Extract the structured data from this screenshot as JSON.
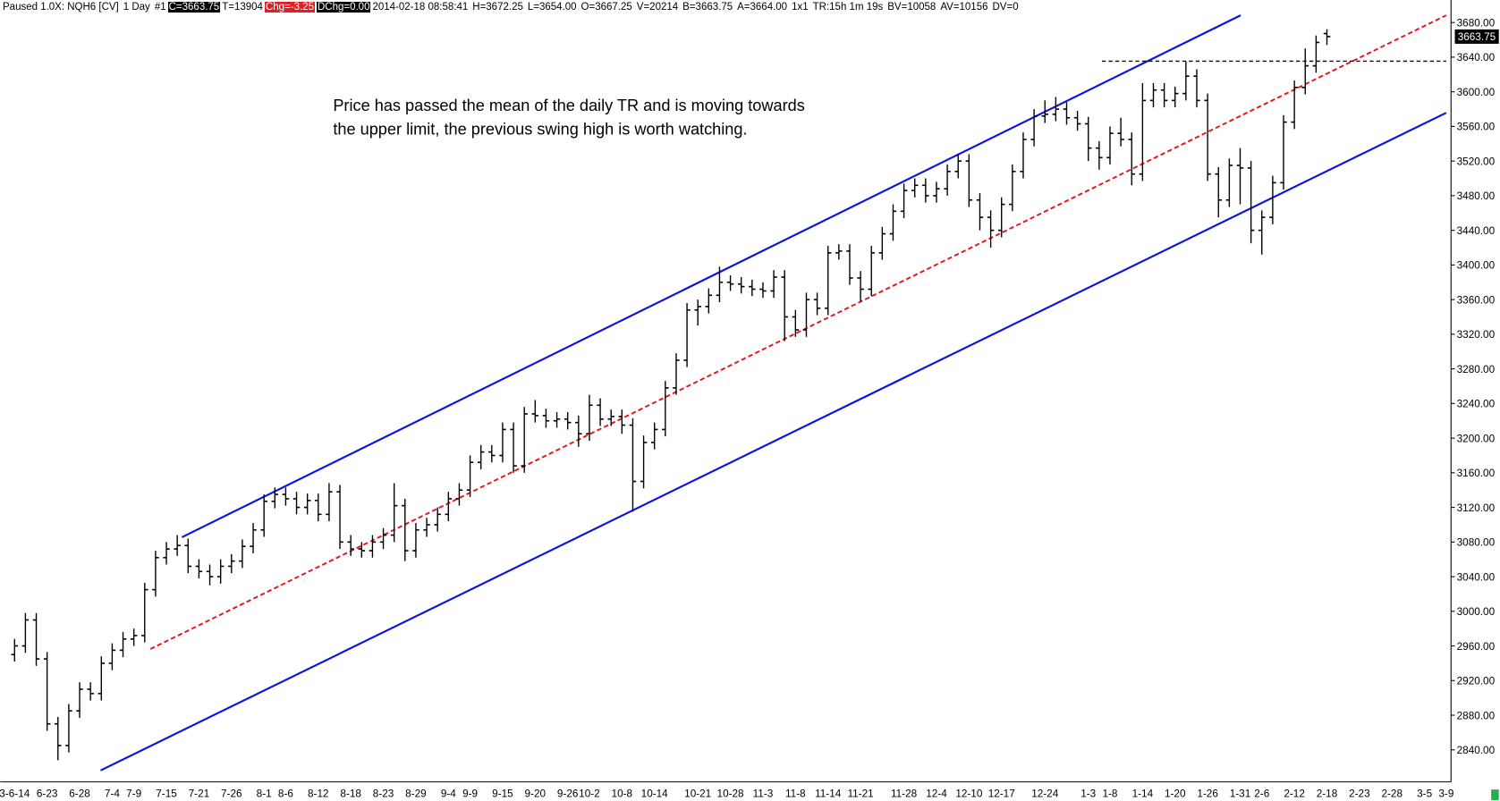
{
  "status_bar": [
    "Paused 1.0X: NQH6 [CV]",
    "1 Day",
    "#1",
    "C=3663.75",
    "T=13904",
    "Chg=-3.25",
    "DChg=0.00",
    "2014-02-18 08:58:41",
    "H=3672.25",
    "L=3654.00",
    "O=3667.25",
    "V=20214",
    "B=3663.75",
    "A=3664.00",
    "1x1",
    "TR:15h 1m 19s",
    "BV=10058",
    "AV=10156",
    "DV=0"
  ],
  "chart_data": {
    "type": "ohlc",
    "color": "#000000",
    "annotation": [
      "Price has passed the mean of the daily TR and is moving towards",
      "the upper limit, the previous swing high is worth watching."
    ],
    "categories": [
      "3-6-14",
      null,
      null,
      "6-23",
      null,
      null,
      "6-28",
      null,
      null,
      "7-4",
      null,
      "7-9",
      null,
      null,
      "7-15",
      null,
      null,
      "7-21",
      null,
      null,
      "7-26",
      null,
      null,
      "8-1",
      null,
      "8-6",
      null,
      null,
      "8-12",
      null,
      null,
      "8-18",
      null,
      null,
      "8-23",
      null,
      null,
      "8-29",
      null,
      null,
      "9-4",
      null,
      "9-9",
      null,
      null,
      "9-15",
      null,
      null,
      "9-20",
      null,
      null,
      "9-26",
      null,
      "10-2",
      null,
      null,
      "10-8",
      null,
      null,
      "10-14",
      null,
      null,
      null,
      "10-21",
      null,
      null,
      "10-28",
      null,
      null,
      "11-3",
      null,
      null,
      "11-8",
      null,
      null,
      "11-14",
      null,
      null,
      "11-21",
      null,
      null,
      null,
      "11-28",
      null,
      null,
      "12-4",
      null,
      null,
      "12-10",
      null,
      null,
      "12-17",
      null,
      null,
      null,
      "12-24",
      null,
      null,
      null,
      "1-3",
      null,
      "1-8",
      null,
      null,
      "1-14",
      null,
      null,
      "1-20",
      null,
      null,
      "1-26",
      null,
      null,
      "1-31",
      null,
      "2-6",
      null,
      null,
      "2-12",
      null,
      null,
      "2-18",
      null,
      null,
      "2-23",
      null,
      null,
      "2-28",
      null,
      null,
      "3-5",
      null,
      "3-9"
    ],
    "open": [
      2950,
      2960,
      2990,
      2945,
      2870,
      2845,
      2885,
      2910,
      2905,
      2940,
      2955,
      2968,
      2972,
      3025,
      3062,
      3072,
      3076,
      3052,
      3046,
      3040,
      3052,
      3058,
      3075,
      3094,
      3127,
      3135,
      3130,
      3120,
      3128,
      3112,
      3138,
      3080,
      3072,
      3070,
      3080,
      3088,
      3122,
      3070,
      3094,
      3100,
      3112,
      3130,
      3140,
      3172,
      3184,
      3180,
      3210,
      3168,
      3228,
      3226,
      3220,
      3222,
      3218,
      3205,
      3238,
      3222,
      3225,
      3215,
      3150,
      3195,
      3210,
      3258,
      3290,
      3348,
      3352,
      3365,
      3380,
      3378,
      3375,
      3372,
      3370,
      3386,
      3340,
      3325,
      3360,
      3350,
      3414,
      3416,
      3385,
      3372,
      3414,
      3436,
      3462,
      3486,
      3492,
      3480,
      3488,
      3508,
      3520,
      3475,
      3455,
      3440,
      3470,
      3508,
      3545,
      3572,
      3574,
      3580,
      3570,
      3563,
      3535,
      3524,
      3552,
      3545,
      3505,
      3590,
      3602,
      3590,
      3598,
      3618,
      3590,
      3505,
      3475,
      3515,
      3512,
      3440,
      3455,
      3495,
      3565,
      3605,
      3630,
      3667.25,
      null,
      null,
      null,
      null,
      null,
      null,
      null,
      null,
      null,
      null,
      null
    ],
    "high": [
      2968,
      2998,
      2998,
      2953,
      2878,
      2893,
      2918,
      2918,
      2948,
      2963,
      2976,
      2980,
      3033,
      3070,
      3080,
      3088,
      3084,
      3060,
      3054,
      3060,
      3066,
      3083,
      3102,
      3135,
      3143,
      3143,
      3138,
      3136,
      3136,
      3148,
      3146,
      3088,
      3080,
      3088,
      3096,
      3148,
      3130,
      3102,
      3108,
      3120,
      3138,
      3148,
      3180,
      3192,
      3192,
      3218,
      3218,
      3236,
      3244,
      3234,
      3230,
      3230,
      3226,
      3250,
      3246,
      3233,
      3233,
      3223,
      3203,
      3218,
      3266,
      3298,
      3356,
      3360,
      3373,
      3398,
      3388,
      3386,
      3383,
      3380,
      3394,
      3394,
      3348,
      3368,
      3368,
      3422,
      3424,
      3424,
      3393,
      3422,
      3444,
      3470,
      3494,
      3500,
      3500,
      3496,
      3516,
      3528,
      3528,
      3483,
      3463,
      3478,
      3516,
      3553,
      3580,
      3590,
      3594,
      3588,
      3578,
      3571,
      3543,
      3560,
      3570,
      3553,
      3610,
      3610,
      3610,
      3606,
      3635,
      3626,
      3598,
      3513,
      3523,
      3535,
      3520,
      3463,
      3503,
      3573,
      3613,
      3650,
      3665,
      3672.25,
      null,
      null,
      null,
      null,
      null,
      null,
      null,
      null,
      null,
      null,
      null
    ],
    "low": [
      2942,
      2952,
      2937,
      2862,
      2828,
      2837,
      2877,
      2897,
      2897,
      2932,
      2947,
      2960,
      2964,
      3017,
      3054,
      3064,
      3044,
      3038,
      3030,
      3032,
      3044,
      3050,
      3067,
      3086,
      3119,
      3122,
      3112,
      3112,
      3104,
      3104,
      3072,
      3064,
      3062,
      3062,
      3072,
      3080,
      3058,
      3062,
      3086,
      3092,
      3104,
      3122,
      3132,
      3164,
      3172,
      3172,
      3160,
      3160,
      3218,
      3212,
      3212,
      3210,
      3190,
      3197,
      3214,
      3214,
      3205,
      3115,
      3142,
      3187,
      3202,
      3250,
      3282,
      3330,
      3344,
      3357,
      3370,
      3367,
      3364,
      3362,
      3362,
      3312,
      3317,
      3317,
      3342,
      3342,
      3406,
      3377,
      3358,
      3364,
      3406,
      3428,
      3454,
      3478,
      3472,
      3472,
      3480,
      3500,
      3467,
      3440,
      3420,
      3432,
      3462,
      3500,
      3537,
      3564,
      3566,
      3562,
      3555,
      3520,
      3510,
      3516,
      3537,
      3492,
      3497,
      3582,
      3582,
      3582,
      3590,
      3582,
      3497,
      3455,
      3467,
      3470,
      3425,
      3412,
      3447,
      3487,
      3557,
      3597,
      3622,
      3654,
      null,
      null,
      null,
      null,
      null,
      null,
      null,
      null,
      null,
      null,
      null
    ],
    "close": [
      2960,
      2990,
      2945,
      2870,
      2845,
      2885,
      2910,
      2905,
      2940,
      2955,
      2968,
      2972,
      3025,
      3062,
      3072,
      3076,
      3052,
      3046,
      3040,
      3052,
      3058,
      3075,
      3094,
      3127,
      3135,
      3130,
      3120,
      3128,
      3112,
      3138,
      3080,
      3072,
      3070,
      3080,
      3088,
      3122,
      3070,
      3094,
      3100,
      3112,
      3130,
      3140,
      3172,
      3184,
      3180,
      3210,
      3168,
      3228,
      3226,
      3220,
      3222,
      3218,
      3205,
      3238,
      3222,
      3225,
      3215,
      3150,
      3195,
      3210,
      3258,
      3290,
      3348,
      3352,
      3365,
      3380,
      3378,
      3375,
      3372,
      3370,
      3386,
      3340,
      3325,
      3360,
      3350,
      3414,
      3416,
      3385,
      3372,
      3414,
      3436,
      3462,
      3486,
      3492,
      3480,
      3488,
      3508,
      3520,
      3475,
      3455,
      3440,
      3470,
      3508,
      3545,
      3572,
      3574,
      3580,
      3570,
      3563,
      3535,
      3524,
      3552,
      3545,
      3505,
      3590,
      3602,
      3590,
      3598,
      3618,
      3590,
      3505,
      3475,
      3515,
      3512,
      3440,
      3455,
      3495,
      3565,
      3605,
      3630,
      3657,
      3663.75,
      null,
      null,
      null,
      null,
      null,
      null,
      null,
      null,
      null,
      null,
      null
    ],
    "ylim": [
      2803,
      3706
    ],
    "yticks": [
      {
        "value": 2840,
        "label": "2840.00"
      },
      {
        "value": 2880,
        "label": "2880.00"
      },
      {
        "value": 2920,
        "label": "2920.00"
      },
      {
        "value": 2960,
        "label": "2960.00"
      },
      {
        "value": 3000,
        "label": "3000.00"
      },
      {
        "value": 3040,
        "label": "3040.00"
      },
      {
        "value": 3080,
        "label": "3080.00"
      },
      {
        "value": 3120,
        "label": "3120.00"
      },
      {
        "value": 3160,
        "label": "3160.00"
      },
      {
        "value": 3200,
        "label": "3200.00"
      },
      {
        "value": 3240,
        "label": "3240.00"
      },
      {
        "value": 3280,
        "label": "3280.00"
      },
      {
        "value": 3320,
        "label": "3320.00"
      },
      {
        "value": 3360,
        "label": "3360.00"
      },
      {
        "value": 3400,
        "label": "3400.00"
      },
      {
        "value": 3440,
        "label": "3440.00"
      },
      {
        "value": 3480,
        "label": "3480.00"
      },
      {
        "value": 3520,
        "label": "3520.00"
      },
      {
        "value": 3560,
        "label": "3560.00"
      },
      {
        "value": 3600,
        "label": "3600.00"
      },
      {
        "value": 3640,
        "label": "3640.00"
      },
      {
        "value": 3680,
        "label": "3680.00"
      }
    ],
    "grid": false
  }
}
